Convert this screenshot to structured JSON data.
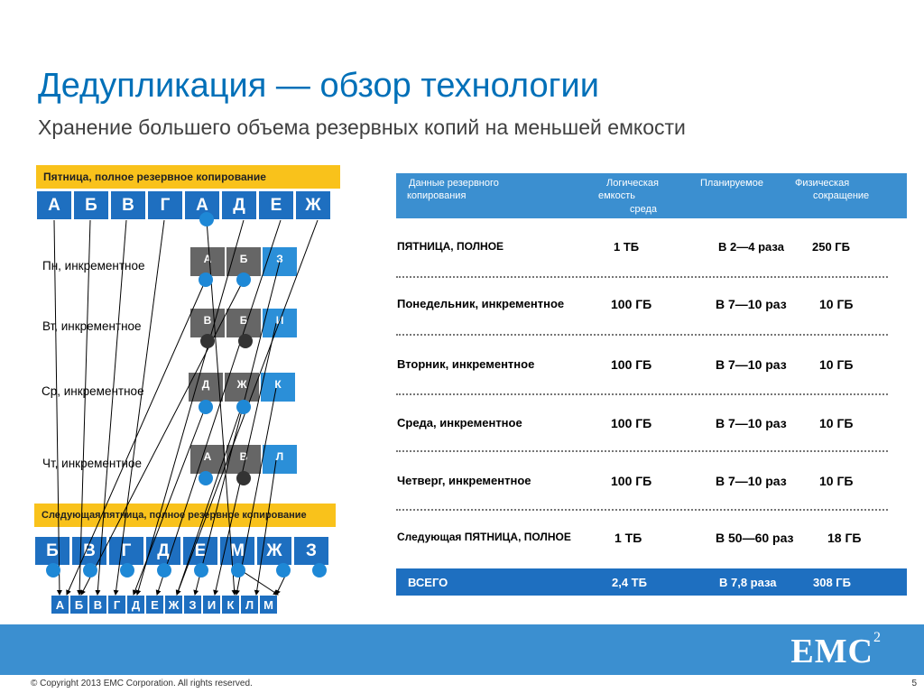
{
  "title": "Дедупликация — обзор технологии",
  "subtitle": "Хранение большего объема резервных копий на меньшей емкости",
  "left": {
    "friday_label": "Пятница, полное резервное копирование",
    "friday_boxes": [
      "А",
      "Б",
      "В",
      "Г",
      "А",
      "Д",
      "Е",
      "Ж"
    ],
    "days": [
      {
        "label": "Пн, инкрементное",
        "boxes": [
          "А",
          "Б",
          "З"
        ]
      },
      {
        "label": "Вт, инкрементное",
        "boxes": [
          "В",
          "Б",
          "И"
        ]
      },
      {
        "label": "Ср, инкрементное",
        "boxes": [
          "Д",
          "Ж",
          "К"
        ]
      },
      {
        "label": "Чт, инкрементное",
        "boxes": [
          "А",
          "В",
          "Л"
        ]
      }
    ],
    "next_friday_label": "Следующая пятница, полное резервное копирование",
    "next_friday_boxes": [
      "Б",
      "В",
      "Г",
      "Д",
      "Е",
      "М",
      "Ж",
      "З"
    ],
    "result_boxes": [
      "А",
      "Б",
      "В",
      "Г",
      "Д",
      "Е",
      "Ж",
      "З",
      "И",
      "К",
      "Л",
      "М"
    ]
  },
  "table": {
    "header": {
      "col1_line1": "Данные резервного",
      "col1_line2": "копирования",
      "col2_line1": "Логическая",
      "col2_line2": "емкость",
      "col2_line3": "среда",
      "col3": "Планируемое",
      "col4_line1": "Физическая",
      "col4_line2": "сокращение"
    },
    "rows": [
      {
        "name": "ПЯТНИЦА, ПОЛНОЕ",
        "logical": "1 ТБ",
        "ratio": "В 2—4 раза",
        "physical": "250  ГБ"
      },
      {
        "name": "Понедельник, инкрементное",
        "logical": "100 ГБ",
        "ratio": "В 7—10 раз",
        "physical": "10 ГБ"
      },
      {
        "name": "Вторник, инкрементное",
        "logical": "100 ГБ",
        "ratio": "В 7—10 раз",
        "physical": "10 ГБ"
      },
      {
        "name": "Среда, инкрементное",
        "logical": "100 ГБ",
        "ratio": "В 7—10 раз",
        "physical": "10 ГБ"
      },
      {
        "name": "Четверг, инкрементное",
        "logical": "100 ГБ",
        "ratio": "В 7—10 раз",
        "physical": "10 ГБ"
      },
      {
        "name": "Следующая ПЯТНИЦА, ПОЛНОЕ",
        "logical": "1 ТБ",
        "ratio": "В 50—60 раз",
        "physical": "18 ГБ"
      }
    ],
    "total": {
      "name": "ВСЕГО",
      "logical": "2,4 ТБ",
      "ratio": "В 7,8 раза",
      "physical": "308 ГБ"
    }
  },
  "logo": {
    "text": "EMC",
    "sup": "2"
  },
  "copyright": "© Copyright 2013 EMC Corporation. All rights reserved.",
  "page_number": "5"
}
